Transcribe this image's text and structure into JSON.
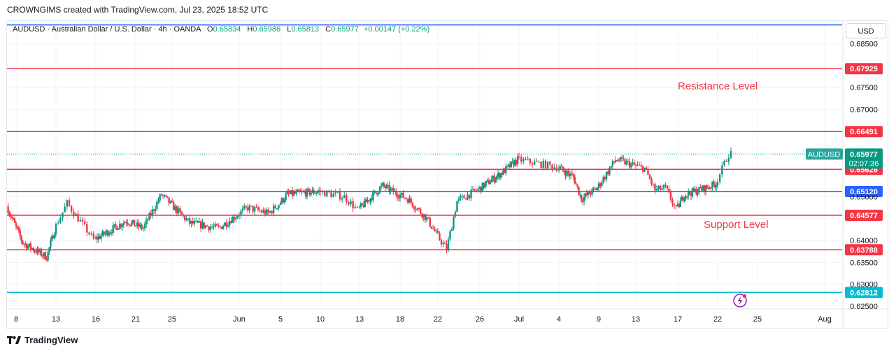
{
  "header": {
    "text": "CROWNGIMS created with TradingView.com, Jul 23, 2025 18:52 UTC"
  },
  "legend": {
    "symbol": "AUDUSD · Australian Dollar / U.S. Dollar · 4h · OANDA",
    "open_key": "O",
    "open": "0.65834",
    "high_key": "H",
    "high": "0.65986",
    "low_key": "L",
    "low": "0.65813",
    "close_key": "C",
    "close": "0.65977",
    "change": "+0.00147 (+0.22%)"
  },
  "currency": "USD",
  "footer": {
    "brand": "TradingView"
  },
  "colors": {
    "up": "#089981",
    "down": "#f23645",
    "resistance": "#f23645",
    "pivot": "#2962ff",
    "target": "#00bcd4"
  },
  "chart_data": {
    "type": "candlestick",
    "symbol": "AUDUSD",
    "timeframe": "4h",
    "ylim": [
      0.6245,
      0.6902
    ],
    "y_ticks": [
      "0.68500",
      "0.67500",
      "0.67000",
      "0.65000",
      "0.64000",
      "0.63500",
      "0.63000",
      "0.62500"
    ],
    "x_ticks": [
      "8",
      "13",
      "16",
      "21",
      "25",
      "Jun",
      "5",
      "10",
      "13",
      "18",
      "22",
      "26",
      "Jul",
      "4",
      "9",
      "13",
      "17",
      "22",
      "25",
      "Aug"
    ],
    "horizontal_levels": [
      {
        "price": 0.6893,
        "label": "",
        "color": "#2962ff"
      },
      {
        "price": 0.67929,
        "label": "0.67929",
        "color": "#f23645"
      },
      {
        "price": 0.66491,
        "label": "0.66491",
        "color": "#f23645"
      },
      {
        "price": 0.65626,
        "label": "0.65626",
        "color": "#f23645"
      },
      {
        "price": 0.6512,
        "label": "0.65120",
        "color": "#2962ff"
      },
      {
        "price": 0.64577,
        "label": "0.64577",
        "color": "#f23645"
      },
      {
        "price": 0.63788,
        "label": "0.63788",
        "color": "#f23645"
      },
      {
        "price": 0.62812,
        "label": "0.62812",
        "color": "#00bcd4"
      }
    ],
    "current_price": {
      "symbol": "AUDUSD",
      "price": "0.65977",
      "countdown": "02:07:36"
    },
    "annotations": {
      "resistance": "Resistance Level",
      "support": "Support Level"
    },
    "waypoints": [
      {
        "x": "May 7",
        "y": 0.6478
      },
      {
        "x": "May 9",
        "y": 0.6395
      },
      {
        "x": "May 12",
        "y": 0.6362
      },
      {
        "x": "May 14",
        "y": 0.6485
      },
      {
        "x": "May 16",
        "y": 0.6402
      },
      {
        "x": "May 20",
        "y": 0.6445
      },
      {
        "x": "May 22",
        "y": 0.6428
      },
      {
        "x": "May 24",
        "y": 0.6505
      },
      {
        "x": "May 27",
        "y": 0.644
      },
      {
        "x": "May 30",
        "y": 0.6428
      },
      {
        "x": "Jun 2",
        "y": 0.6475
      },
      {
        "x": "Jun 4",
        "y": 0.6462
      },
      {
        "x": "Jun 6",
        "y": 0.6505
      },
      {
        "x": "Jun 10",
        "y": 0.6512
      },
      {
        "x": "Jun 12",
        "y": 0.65
      },
      {
        "x": "Jun 13",
        "y": 0.647
      },
      {
        "x": "Jun 16",
        "y": 0.6525
      },
      {
        "x": "Jun 19",
        "y": 0.6495
      },
      {
        "x": "Jun 21",
        "y": 0.645
      },
      {
        "x": "Jun 23",
        "y": 0.638
      },
      {
        "x": "Jun 24",
        "y": 0.649
      },
      {
        "x": "Jun 27",
        "y": 0.653
      },
      {
        "x": "Jun 29",
        "y": 0.6555
      },
      {
        "x": "Jul 1",
        "y": 0.6585
      },
      {
        "x": "Jul 4",
        "y": 0.6568
      },
      {
        "x": "Jul 6",
        "y": 0.6545
      },
      {
        "x": "Jul 7",
        "y": 0.6495
      },
      {
        "x": "Jul 9",
        "y": 0.652
      },
      {
        "x": "Jul 11",
        "y": 0.6585
      },
      {
        "x": "Jul 14",
        "y": 0.6565
      },
      {
        "x": "Jul 15",
        "y": 0.6515
      },
      {
        "x": "Jul 16",
        "y": 0.652
      },
      {
        "x": "Jul 17",
        "y": 0.647
      },
      {
        "x": "Jul 18",
        "y": 0.6505
      },
      {
        "x": "Jul 21",
        "y": 0.6522
      },
      {
        "x": "Jul 22",
        "y": 0.653
      },
      {
        "x": "Jul 23",
        "y": 0.6598
      }
    ]
  }
}
